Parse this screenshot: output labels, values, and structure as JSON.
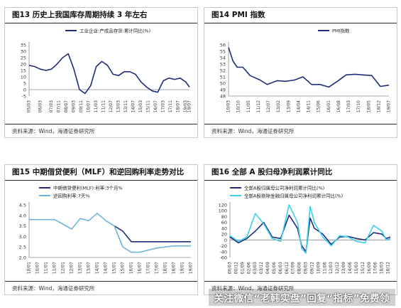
{
  "panels": {
    "p13": {
      "title": "图13 历史上我国库存周期持续 3 年左右",
      "source": "资料来源：Wind，海通证券研究所"
    },
    "p14": {
      "title": "图14 PMI 指数",
      "source": "资料来源：Wind，海通证券研究所"
    },
    "p15": {
      "title": "图15 中期借贷便利（MLF）和逆回购利率走势对比",
      "source": "资料来源：Wind，海通证券研究所"
    },
    "p16": {
      "title": "图16 全部 A 股归母净利润累计同比",
      "source": "资料来源：Wind，海通证券研究所"
    }
  },
  "watermark": "关注微信“老韩实盘”回复“指标”免费领",
  "chart_data": [
    {
      "id": "p13",
      "type": "line",
      "series": [
        {
          "name": "工业企业:产成品存货:累计同比(%)",
          "color": "#1f2d7a",
          "x": [
            "05/03",
            "05/09",
            "06/03",
            "06/09",
            "07/03",
            "07/09",
            "08/03",
            "08/09",
            "09/03",
            "09/09",
            "10/03",
            "10/09",
            "11/03",
            "11/09",
            "12/03",
            "12/09",
            "13/03",
            "13/09",
            "14/03",
            "14/09",
            "15/03",
            "15/09",
            "16/03",
            "16/09",
            "17/03",
            "17/09",
            "18/03",
            "18/09",
            "19/03",
            "19/07"
          ],
          "values": [
            19,
            18,
            16,
            15,
            16,
            20,
            25,
            28,
            16,
            0,
            -3,
            3,
            18,
            22,
            19,
            12,
            11,
            14,
            14,
            12,
            6,
            2,
            -1,
            -2,
            7,
            9,
            8,
            9,
            6,
            2
          ]
        }
      ],
      "xticks": [
        "05/03",
        "06/03",
        "07/03",
        "07/11",
        "08/07",
        "09/03",
        "09/11",
        "10/07",
        "11/03",
        "11/11",
        "12/07",
        "13/03",
        "13/11",
        "14/07",
        "15/03",
        "15/11",
        "16/07",
        "17/03",
        "17/11",
        "18/07",
        "19/03",
        "19/07"
      ],
      "ylim": [
        -5,
        35
      ],
      "yticks": [
        -5,
        0,
        5,
        10,
        15,
        20,
        25,
        30,
        35
      ],
      "legend": "top"
    },
    {
      "id": "p14",
      "type": "line",
      "series": [
        {
          "name": "PMI指数",
          "color": "#1f2d7a",
          "x": [
            "10/03",
            "10/06",
            "10/09",
            "11/01",
            "11/06",
            "12/01",
            "12/06",
            "13/01",
            "13/07",
            "14/01",
            "14/07",
            "15/01",
            "15/07",
            "16/01",
            "16/07",
            "17/01",
            "17/07",
            "18/01",
            "18/07",
            "19/01",
            "19/07"
          ],
          "values": [
            55.6,
            53.5,
            52.5,
            52.5,
            51.2,
            50.5,
            49.8,
            50.4,
            50.3,
            50.5,
            51,
            49.8,
            49.8,
            49.4,
            50.3,
            51.3,
            51.4,
            51.3,
            51.2,
            49.5,
            49.7
          ]
        }
      ],
      "xticks": [
        "10/03",
        "10/10",
        "11/05",
        "11/12",
        "12/07",
        "13/02",
        "13/09",
        "14/04",
        "14/11",
        "15/06",
        "16/01",
        "16/08",
        "17/03",
        "17/10",
        "18/05",
        "18/12",
        "19/07"
      ],
      "ylim": [
        48,
        56
      ],
      "yticks": [
        48,
        49,
        50,
        51,
        52,
        53,
        54,
        55,
        56
      ],
      "legend": "top"
    },
    {
      "id": "p15",
      "type": "line",
      "series": [
        {
          "name": "中期借贷便利(MLF):利率:3个月%",
          "color": "#1f2d7a",
          "x": [
            "15/01",
            "15/07",
            "16/01",
            "16/07",
            "17/01",
            "17/07",
            "18/01",
            "18/07",
            "19/01",
            "19/07"
          ],
          "values": [
            3.5,
            3.25,
            2.75,
            2.75,
            2.75,
            2.75,
            2.75,
            2.75,
            2.75,
            2.75
          ]
        },
        {
          "name": "逆回购利率:7天%",
          "color": "#6fb3da",
          "x": [
            "10/01",
            "11/07",
            "12/07",
            "13/01",
            "13/07",
            "14/01",
            "14/07",
            "15/01",
            "15/07",
            "16/01",
            "16/07",
            "17/01",
            "17/07",
            "18/01",
            "18/07",
            "19/01",
            "19/07"
          ],
          "values": [
            3.8,
            3.8,
            3.35,
            3.85,
            3.75,
            4.1,
            3.75,
            3.5,
            2.5,
            2.25,
            2.25,
            2.35,
            2.45,
            2.5,
            2.55,
            2.55,
            2.55
          ]
        }
      ],
      "xticks": [
        "10/01",
        "10/07",
        "11/01",
        "11/07",
        "12/01",
        "12/07",
        "13/01",
        "13/07",
        "14/01",
        "14/07",
        "15/01",
        "15/07",
        "16/01",
        "16/07",
        "17/01",
        "17/07",
        "18/01",
        "18/07",
        "19/01",
        "19/07"
      ],
      "ylim": [
        2.0,
        4.5
      ],
      "yticks": [
        2.0,
        2.5,
        3.0,
        3.5,
        4.0,
        4.5
      ],
      "legend": "top"
    },
    {
      "id": "p16",
      "type": "line",
      "series": [
        {
          "name": "全部A股归属母公司净利润累计同比(%)",
          "color": "#1f2d7a",
          "x": [
            "00/03",
            "01/03",
            "02/03",
            "03/03",
            "04/03",
            "05/03",
            "06/03",
            "07/03",
            "08/03",
            "08/09",
            "09/03",
            "09/09",
            "10/03",
            "11/03",
            "12/03",
            "13/03",
            "14/03",
            "15/03",
            "16/03",
            "17/03",
            "18/03",
            "18/09",
            "19/03"
          ],
          "values": [
            10,
            -10,
            5,
            30,
            60,
            10,
            5,
            85,
            40,
            -20,
            -40,
            75,
            40,
            20,
            -15,
            10,
            12,
            5,
            0,
            25,
            20,
            5,
            10
          ]
        },
        {
          "name": "全部A股剔除金融归属母公司净利润累计同比(%)",
          "color": "#3dd0ec",
          "x": [
            "00/03",
            "01/03",
            "02/03",
            "03/03",
            "04/03",
            "05/03",
            "06/03",
            "07/03",
            "08/03",
            "08/09",
            "09/03",
            "09/09",
            "10/03",
            "11/03",
            "12/03",
            "13/03",
            "14/03",
            "15/03",
            "16/03",
            "17/03",
            "18/03",
            "18/09",
            "19/03"
          ],
          "values": [
            15,
            -5,
            10,
            90,
            55,
            5,
            -5,
            120,
            60,
            -30,
            -45,
            115,
            60,
            10,
            -20,
            15,
            10,
            -5,
            -10,
            50,
            30,
            0,
            5
          ]
        }
      ],
      "xticks": [
        "00/03",
        "00/12",
        "01/09",
        "02/06",
        "03/03",
        "03/12",
        "04/09",
        "05/06",
        "06/03",
        "06/12",
        "07/09",
        "08/06",
        "09/03",
        "09/12",
        "10/09",
        "11/06",
        "12/03",
        "12/12",
        "13/09",
        "14/06",
        "15/03",
        "15/12",
        "16/09",
        "17/06",
        "18/03",
        "18/12"
      ],
      "ylim": [
        -60,
        120
      ],
      "yticks": [
        -60,
        -40,
        -20,
        0,
        20,
        40,
        60,
        80,
        100,
        120
      ],
      "legend": "top"
    }
  ]
}
